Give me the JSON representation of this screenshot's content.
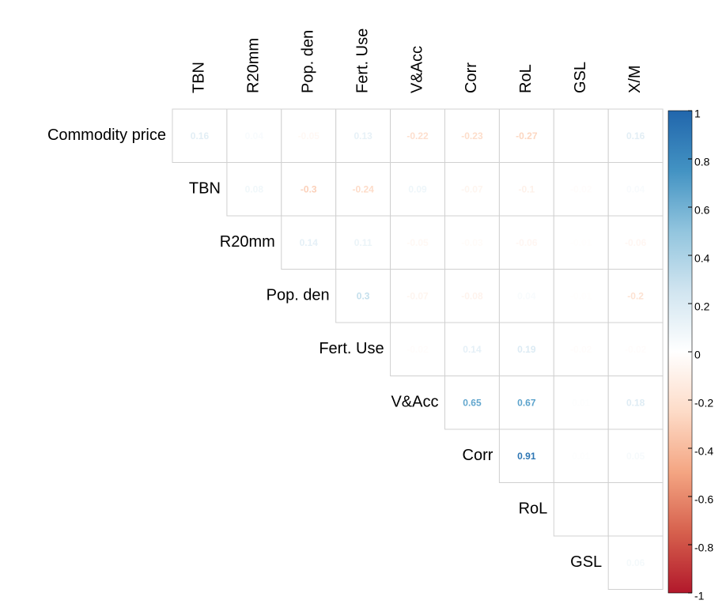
{
  "chart_data": {
    "type": "corrplot",
    "rows": [
      "Commodity price",
      "TBN",
      "R20mm",
      "Pop. den",
      "Fert. Use",
      "V&Acc",
      "Corr",
      "RoL",
      "GSL"
    ],
    "columns": [
      "TBN",
      "R20mm",
      "Pop. den",
      "Fert. Use",
      "V&Acc",
      "Corr",
      "RoL",
      "GSL",
      "X/M"
    ],
    "values": [
      [
        0.16,
        0.04,
        -0.05,
        0.13,
        -0.22,
        -0.23,
        -0.27,
        0,
        0.16
      ],
      [
        0.08,
        -0.3,
        -0.24,
        0.09,
        -0.07,
        -0.1,
        -0.02,
        0.04
      ],
      [
        0.14,
        0.11,
        -0.05,
        -0.03,
        -0.06,
        -0.01,
        -0.06
      ],
      [
        0.3,
        -0.07,
        -0.08,
        0.04,
        -0.01,
        -0.2
      ],
      [
        -0.02,
        0.14,
        0.19,
        -0.02,
        -0.02
      ],
      [
        0.65,
        0.67,
        0.01,
        0.18
      ],
      [
        0.91,
        0.01,
        0.05
      ],
      [
        0,
        0
      ],
      [
        0.06
      ]
    ],
    "colorscale": [
      "#B2182B",
      "#D6604D",
      "#F4A582",
      "#FDDBC7",
      "#FFFFFF",
      "#D1E5F0",
      "#92C5DE",
      "#4393C3",
      "#2166AC"
    ],
    "clim": [
      -1,
      1
    ],
    "cticks": [
      1,
      0.8,
      0.6,
      0.4,
      0.2,
      0,
      -0.2,
      -0.4,
      -0.6,
      -0.8,
      -1
    ]
  }
}
